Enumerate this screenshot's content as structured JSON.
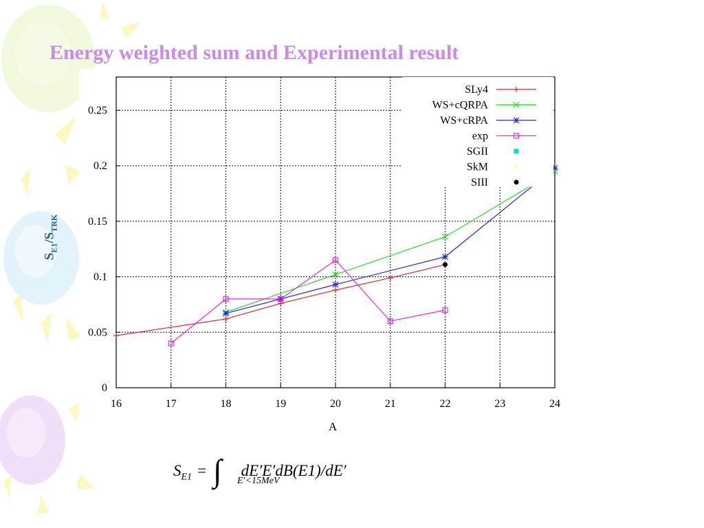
{
  "slide": {
    "title": "Energy weighted sum and Experimental result",
    "ylabel_main": "S",
    "ylabel_sub1": "E1",
    "ylabel_sep": "/S",
    "ylabel_sub2": "TRK",
    "formula": {
      "lhs": "S",
      "lhs_sub": "E1",
      "eq": "=",
      "integral": "∫",
      "limit": "E′<15MeV",
      "integrand": "dE′E′dB(E1)/dE′"
    }
  },
  "colors": {
    "SLy4": "#ee2222",
    "WS+cQRPA": "#22dd22",
    "WS+cRPA": "#2222ee",
    "exp": "#ee22ee",
    "SGII": "#00dddd",
    "SkM": "#ffffcc",
    "SIII": "#000000",
    "title": "#cc88ee",
    "ylabel": "#1a5fa8"
  },
  "chart_data": {
    "type": "line",
    "title": "",
    "xlabel": "A",
    "ylabel": "S_E1/S_TRK",
    "xlim": [
      16,
      24
    ],
    "ylim": [
      0,
      0.28
    ],
    "xticks": [
      16,
      17,
      18,
      19,
      20,
      21,
      22,
      23,
      24
    ],
    "yticks": [
      0,
      0.05,
      0.1,
      0.15,
      0.2,
      0.25
    ],
    "ytick_labels": [
      "0",
      "0.05",
      "0.1",
      "0.15",
      "0.2",
      "0.25"
    ],
    "grid": true,
    "legend_position": "top-right",
    "series": [
      {
        "name": "SLy4",
        "marker": "+",
        "x": [
          16,
          18,
          19,
          20,
          21,
          22
        ],
        "y": [
          0.047,
          0.062,
          0.076,
          0.088,
          0.099,
          0.111
        ]
      },
      {
        "name": "WS+cQRPA",
        "marker": "x",
        "x": [
          18,
          20,
          22,
          24
        ],
        "y": [
          0.068,
          0.102,
          0.136,
          0.195
        ]
      },
      {
        "name": "WS+cRPA",
        "marker": "*",
        "x": [
          18,
          19,
          20,
          22,
          24
        ],
        "y": [
          0.067,
          0.08,
          0.093,
          0.118,
          0.198
        ]
      },
      {
        "name": "exp",
        "marker": "square",
        "x": [
          17,
          18,
          19,
          20,
          21,
          22
        ],
        "y": [
          0.04,
          0.08,
          0.08,
          0.115,
          0.06,
          0.07
        ]
      },
      {
        "name": "SGII",
        "marker": "filled-square",
        "x": [],
        "y": []
      },
      {
        "name": "SkM",
        "marker": "filled-square",
        "x": [],
        "y": []
      },
      {
        "name": "SIII",
        "marker": "dot",
        "x": [
          22
        ],
        "y": [
          0.111
        ]
      }
    ]
  }
}
